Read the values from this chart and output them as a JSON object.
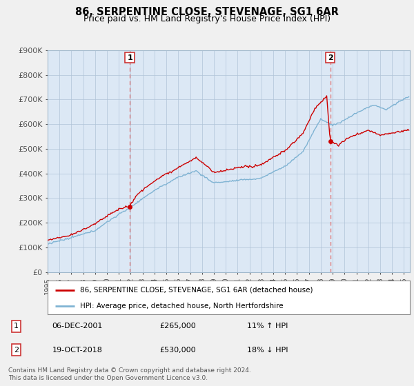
{
  "title": "86, SERPENTINE CLOSE, STEVENAGE, SG1 6AR",
  "subtitle": "Price paid vs. HM Land Registry's House Price Index (HPI)",
  "ylim": [
    0,
    900000
  ],
  "yticks": [
    0,
    100000,
    200000,
    300000,
    400000,
    500000,
    600000,
    700000,
    800000,
    900000
  ],
  "ytick_labels": [
    "£0",
    "£100K",
    "£200K",
    "£300K",
    "£400K",
    "£500K",
    "£600K",
    "£700K",
    "£800K",
    "£900K"
  ],
  "xlim_start": 1995.0,
  "xlim_end": 2025.5,
  "sale1_x": 2001.92,
  "sale1_y": 265000,
  "sale1_label": "1",
  "sale1_date": "06-DEC-2001",
  "sale1_price": "£265,000",
  "sale1_hpi": "11% ↑ HPI",
  "sale2_x": 2018.79,
  "sale2_y": 530000,
  "sale2_label": "2",
  "sale2_date": "19-OCT-2018",
  "sale2_price": "£530,000",
  "sale2_hpi": "18% ↓ HPI",
  "line_color_red": "#cc0000",
  "line_color_blue": "#7fb3d3",
  "legend_label_red": "86, SERPENTINE CLOSE, STEVENAGE, SG1 6AR (detached house)",
  "legend_label_blue": "HPI: Average price, detached house, North Hertfordshire",
  "footer": "Contains HM Land Registry data © Crown copyright and database right 2024.\nThis data is licensed under the Open Government Licence v3.0.",
  "background_color": "#f0f0f0",
  "plot_bg_color": "#dce8f5",
  "grid_color": "#b0c4d8",
  "dashed_color": "#e08080"
}
